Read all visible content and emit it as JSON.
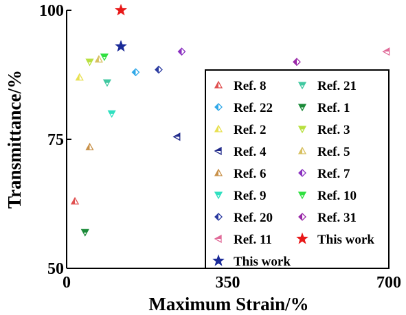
{
  "chart_data": {
    "type": "scatter",
    "xlabel": "Maximum Strain/%",
    "ylabel": "Transmittance/%",
    "xlim": [
      0,
      700
    ],
    "ylim": [
      50,
      100
    ],
    "xticks": [
      0,
      350,
      700
    ],
    "yticks": [
      50,
      75,
      100
    ],
    "grid": false,
    "legend_position": "bottom-right",
    "series": [
      {
        "name": "Ref. 8",
        "marker": "triangle-up",
        "color": "#e05050",
        "points": [
          [
            18,
            63
          ]
        ]
      },
      {
        "name": "Ref. 22",
        "marker": "diamond",
        "color": "#30a8e8",
        "points": [
          [
            150,
            88
          ]
        ]
      },
      {
        "name": "Ref. 2",
        "marker": "triangle-up",
        "color": "#e8e050",
        "points": [
          [
            28,
            87
          ]
        ]
      },
      {
        "name": "Ref. 4",
        "marker": "triangle-left",
        "color": "#202a8a",
        "points": [
          [
            240,
            75.5
          ]
        ]
      },
      {
        "name": "Ref. 6",
        "marker": "triangle-up",
        "color": "#c89048",
        "points": [
          [
            50,
            73.5
          ]
        ]
      },
      {
        "name": "Ref. 9",
        "marker": "triangle-down",
        "color": "#30e0c0",
        "points": [
          [
            98,
            80
          ]
        ]
      },
      {
        "name": "Ref. 20",
        "marker": "diamond",
        "color": "#2a3aa0",
        "points": [
          [
            200,
            88.5
          ]
        ]
      },
      {
        "name": "Ref. 11",
        "marker": "triangle-left",
        "color": "#e06a98",
        "points": [
          [
            695,
            92
          ]
        ]
      },
      {
        "name": "This work",
        "marker": "star",
        "color": "#e81818",
        "points": [
          [
            118,
            100
          ]
        ]
      },
      {
        "name": "This work",
        "marker": "star",
        "color": "#1a2a98",
        "points": [
          [
            118,
            93
          ]
        ]
      },
      {
        "name": "Ref. 21",
        "marker": "triangle-down",
        "color": "#40c8a0",
        "points": [
          [
            88,
            86
          ]
        ]
      },
      {
        "name": "Ref. 1",
        "marker": "triangle-down",
        "color": "#1a8a38",
        "points": [
          [
            40,
            57
          ]
        ]
      },
      {
        "name": "Ref. 3",
        "marker": "triangle-down",
        "color": "#b8e040",
        "points": [
          [
            50,
            90
          ]
        ]
      },
      {
        "name": "Ref. 5",
        "marker": "triangle-up",
        "color": "#d8c060",
        "points": [
          [
            70,
            90.5
          ]
        ]
      },
      {
        "name": "Ref. 7",
        "marker": "diamond",
        "color": "#8a30c0",
        "points": [
          [
            250,
            92
          ]
        ]
      },
      {
        "name": "Ref. 10",
        "marker": "triangle-down",
        "color": "#30e040",
        "points": [
          [
            82,
            91
          ]
        ]
      },
      {
        "name": "Ref. 31",
        "marker": "diamond",
        "color": "#9a2aa8",
        "points": [
          [
            500,
            90
          ]
        ]
      }
    ],
    "legend_order": [
      0,
      10,
      1,
      11,
      2,
      12,
      3,
      13,
      4,
      14,
      5,
      15,
      6,
      16,
      7,
      8,
      9
    ]
  }
}
